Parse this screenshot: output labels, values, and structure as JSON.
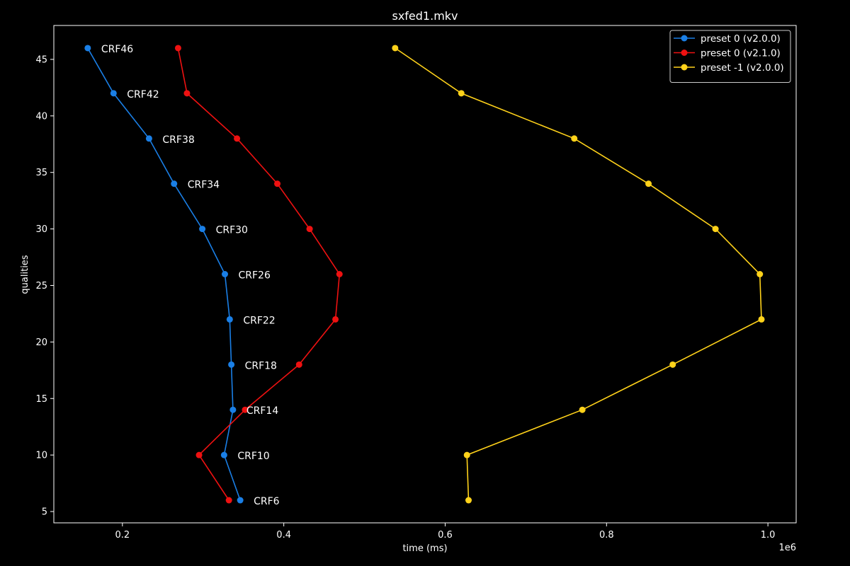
{
  "chart_data": {
    "type": "line",
    "title": "sxfed1.mkv",
    "xlabel": "time (ms)",
    "ylabel": "qualities",
    "x_offset_label": "1e6",
    "xlim": [
      115000,
      1035000
    ],
    "ylim": [
      4,
      48
    ],
    "x_ticks": [
      0.2,
      0.4,
      0.6,
      0.8,
      1.0
    ],
    "y_ticks": [
      5,
      10,
      15,
      20,
      25,
      30,
      35,
      40,
      45
    ],
    "legend_position": "top-right",
    "colors": {
      "background": "#000000",
      "foreground": "#ffffff"
    },
    "series": [
      {
        "name": "preset 0 (v2.0.0)",
        "color": "#1a7fe6",
        "x": [
          157000,
          189000,
          233000,
          264000,
          299000,
          327000,
          333000,
          335000,
          337000,
          326000,
          346000
        ],
        "y": [
          46,
          42,
          38,
          34,
          30,
          26,
          22,
          18,
          14,
          10,
          6
        ]
      },
      {
        "name": "preset 0 (v2.1.0)",
        "color": "#ee1111",
        "x": [
          269000,
          280000,
          342000,
          392000,
          432000,
          469000,
          464000,
          419000,
          352000,
          295000,
          332000
        ],
        "y": [
          46,
          42,
          38,
          34,
          30,
          26,
          22,
          18,
          14,
          10,
          6
        ]
      },
      {
        "name": "preset -1 (v2.0.0)",
        "color": "#ffd21a",
        "x": [
          538000,
          620000,
          760000,
          852000,
          935000,
          990000,
          992000,
          882000,
          770000,
          627000,
          629000
        ],
        "y": [
          46,
          42,
          38,
          34,
          30,
          26,
          22,
          18,
          14,
          10,
          6
        ]
      }
    ],
    "annotations": [
      {
        "text": "CRF46",
        "x": 157000,
        "y": 46
      },
      {
        "text": "CRF42",
        "x": 189000,
        "y": 42
      },
      {
        "text": "CRF38",
        "x": 233000,
        "y": 38
      },
      {
        "text": "CRF34",
        "x": 264000,
        "y": 34
      },
      {
        "text": "CRF30",
        "x": 299000,
        "y": 30
      },
      {
        "text": "CRF26",
        "x": 327000,
        "y": 26
      },
      {
        "text": "CRF22",
        "x": 333000,
        "y": 22
      },
      {
        "text": "CRF18",
        "x": 335000,
        "y": 18
      },
      {
        "text": "CRF14",
        "x": 337000,
        "y": 14
      },
      {
        "text": "CRF10",
        "x": 326000,
        "y": 10
      },
      {
        "text": "CRF6",
        "x": 346000,
        "y": 6
      }
    ]
  }
}
